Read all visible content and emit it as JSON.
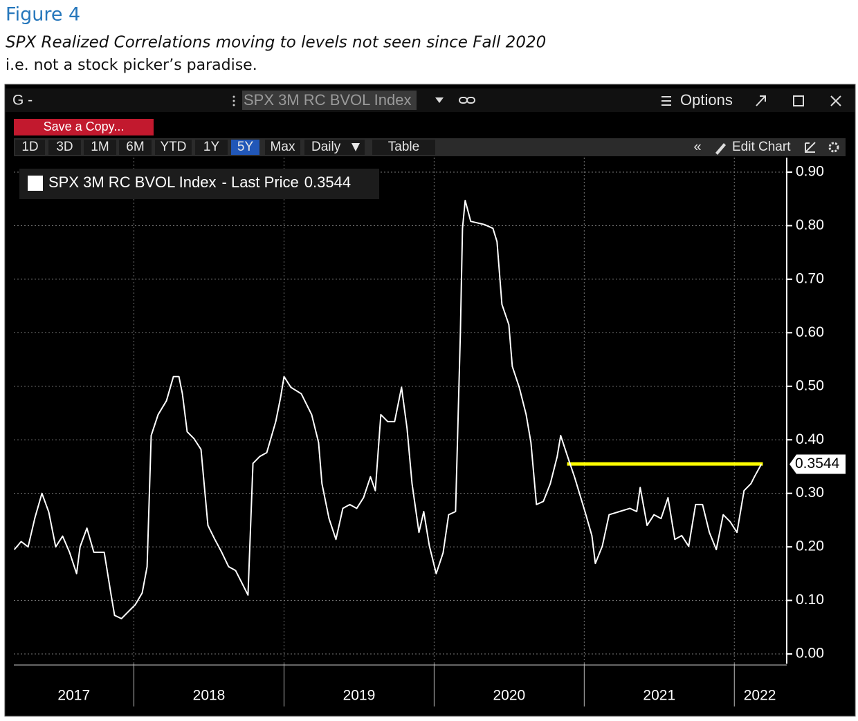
{
  "header": {
    "figure": "Figure 4",
    "subtitle": "SPX Realized Correlations moving to levels not seen since Fall 2020",
    "note": "i.e. not a stock picker’s paradise."
  },
  "window": {
    "menu": "G -",
    "ticker": "SPX 3M RC BVOL Index",
    "options": "Options",
    "save": "Save a Copy...",
    "tabs": [
      "1D",
      "3D",
      "1M",
      "6M",
      "YTD",
      "1Y",
      "5Y",
      "Max",
      "Daily",
      "Table"
    ],
    "active_tab": 6,
    "edit": "Edit Chart"
  },
  "chart_data": {
    "type": "line",
    "x": [
      2017.203,
      2017.249,
      2017.295,
      2017.341,
      2017.387,
      2017.433,
      2017.479,
      2017.525,
      2017.571,
      2017.618,
      2017.641,
      2017.687,
      2017.733,
      2017.802,
      2017.848,
      2017.871,
      2017.917,
      2017.963,
      2018.009,
      2018.055,
      2018.088,
      2018.115,
      2018.161,
      2018.217,
      2018.263,
      2018.3,
      2018.323,
      2018.355,
      2018.401,
      2018.447,
      2018.493,
      2018.539,
      2018.585,
      2018.631,
      2018.677,
      2018.724,
      2018.76,
      2018.793,
      2018.839,
      2018.885,
      2018.945,
      2018.977,
      2019.0,
      2019.046,
      2019.115,
      2019.184,
      2019.23,
      2019.253,
      2019.3,
      2019.346,
      2019.392,
      2019.438,
      2019.484,
      2019.53,
      2019.576,
      2019.608,
      2019.645,
      2019.691,
      2019.737,
      2019.783,
      2019.82,
      2019.853,
      2019.899,
      2019.931,
      2019.968,
      2020.014,
      2020.06,
      2020.097,
      2020.143,
      2020.175,
      2020.189,
      2020.207,
      2020.244,
      2020.336,
      2020.392,
      2020.419,
      2020.452,
      2020.498,
      2020.521,
      2020.567,
      2020.613,
      2020.645,
      2020.682,
      2020.728,
      2020.774,
      2020.82,
      2020.843,
      2020.889,
      2020.935,
      2021.005,
      2021.051,
      2021.074,
      2021.12,
      2021.166,
      2021.235,
      2021.304,
      2021.35,
      2021.373,
      2021.419,
      2021.465,
      2021.512,
      2021.558,
      2021.604,
      2021.65,
      2021.696,
      2021.742,
      2021.788,
      2021.834,
      2021.88,
      2021.926,
      2021.972,
      2022.018,
      2022.065,
      2022.111,
      2022.134,
      2022.18
    ],
    "series": [
      {
        "name": "SPX 3M RC BVOL Index",
        "color": "#ffffff",
        "values": [
          0.195,
          0.21,
          0.2,
          0.255,
          0.3,
          0.265,
          0.2,
          0.22,
          0.19,
          0.15,
          0.2,
          0.235,
          0.19,
          0.19,
          0.11,
          0.072,
          0.066,
          0.079,
          0.092,
          0.114,
          0.163,
          0.408,
          0.447,
          0.473,
          0.518,
          0.518,
          0.486,
          0.415,
          0.402,
          0.382,
          0.24,
          0.214,
          0.19,
          0.163,
          0.156,
          0.13,
          0.11,
          0.356,
          0.369,
          0.376,
          0.434,
          0.479,
          0.518,
          0.498,
          0.486,
          0.447,
          0.395,
          0.318,
          0.253,
          0.214,
          0.272,
          0.279,
          0.272,
          0.292,
          0.331,
          0.305,
          0.447,
          0.434,
          0.434,
          0.498,
          0.421,
          0.318,
          0.227,
          0.266,
          0.202,
          0.15,
          0.189,
          0.26,
          0.266,
          0.602,
          0.795,
          0.847,
          0.808,
          0.802,
          0.795,
          0.77,
          0.653,
          0.615,
          0.537,
          0.498,
          0.447,
          0.395,
          0.279,
          0.285,
          0.318,
          0.369,
          0.408,
          0.369,
          0.331,
          0.266,
          0.221,
          0.169,
          0.201,
          0.26,
          0.266,
          0.272,
          0.266,
          0.311,
          0.24,
          0.26,
          0.253,
          0.292,
          0.214,
          0.221,
          0.201,
          0.279,
          0.279,
          0.227,
          0.195,
          0.26,
          0.247,
          0.227,
          0.305,
          0.318,
          0.331,
          0.3544
        ]
      }
    ],
    "legend_text": "- Last Price",
    "last_price": 0.3544,
    "annotation_line": {
      "y": 0.355,
      "x": [
        2020.886,
        2022.19
      ],
      "color": "#ffff00"
    },
    "xlim": [
      2017.2,
      2022.34
    ],
    "xticks": [
      2017,
      2018,
      2019,
      2020,
      2021,
      2022
    ],
    "ylim": [
      0,
      0.9
    ],
    "yticks": [
      {
        "value": 0,
        "label": "0.00"
      },
      {
        "value": 0.1,
        "label": "0.10"
      },
      {
        "value": 0.2,
        "label": "0.20"
      },
      {
        "value": 0.3,
        "label": "0.30"
      },
      {
        "value": 0.4,
        "label": "0.40"
      },
      {
        "value": 0.5,
        "label": "0.50"
      },
      {
        "value": 0.6,
        "label": "0.60"
      },
      {
        "value": 0.7,
        "label": "0.70"
      },
      {
        "value": 0.8,
        "label": "0.80"
      },
      {
        "value": 0.9,
        "label": "0.90"
      }
    ],
    "grid": true
  }
}
